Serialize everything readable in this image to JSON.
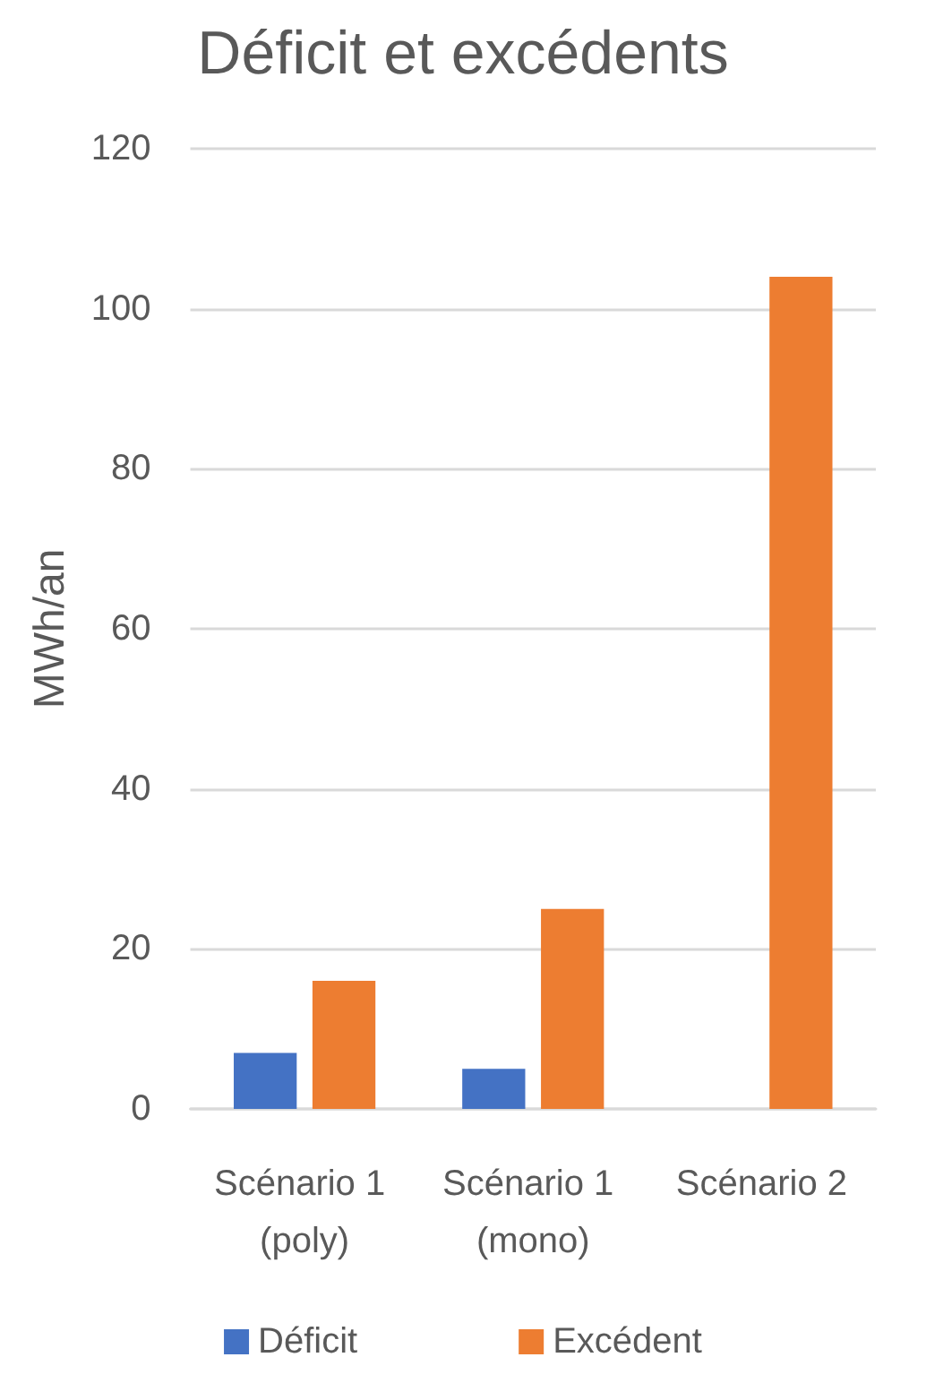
{
  "chart_data": {
    "type": "bar",
    "title": "Déficit et excédents",
    "ylabel": "MWh/an",
    "categories": [
      "Scénario 1 (poly)",
      "Scénario 1 (mono)",
      "Scénario 2"
    ],
    "series": [
      {
        "name": "Déficit",
        "color": "#4472c4",
        "values": [
          7,
          5,
          0
        ]
      },
      {
        "name": "Excédent",
        "color": "#ed7d31",
        "values": [
          16,
          25,
          104
        ]
      }
    ],
    "ylim": [
      0,
      120
    ],
    "yticks": [
      0,
      20,
      40,
      60,
      80,
      100,
      120
    ],
    "grid": "y",
    "legend": "bottom"
  }
}
